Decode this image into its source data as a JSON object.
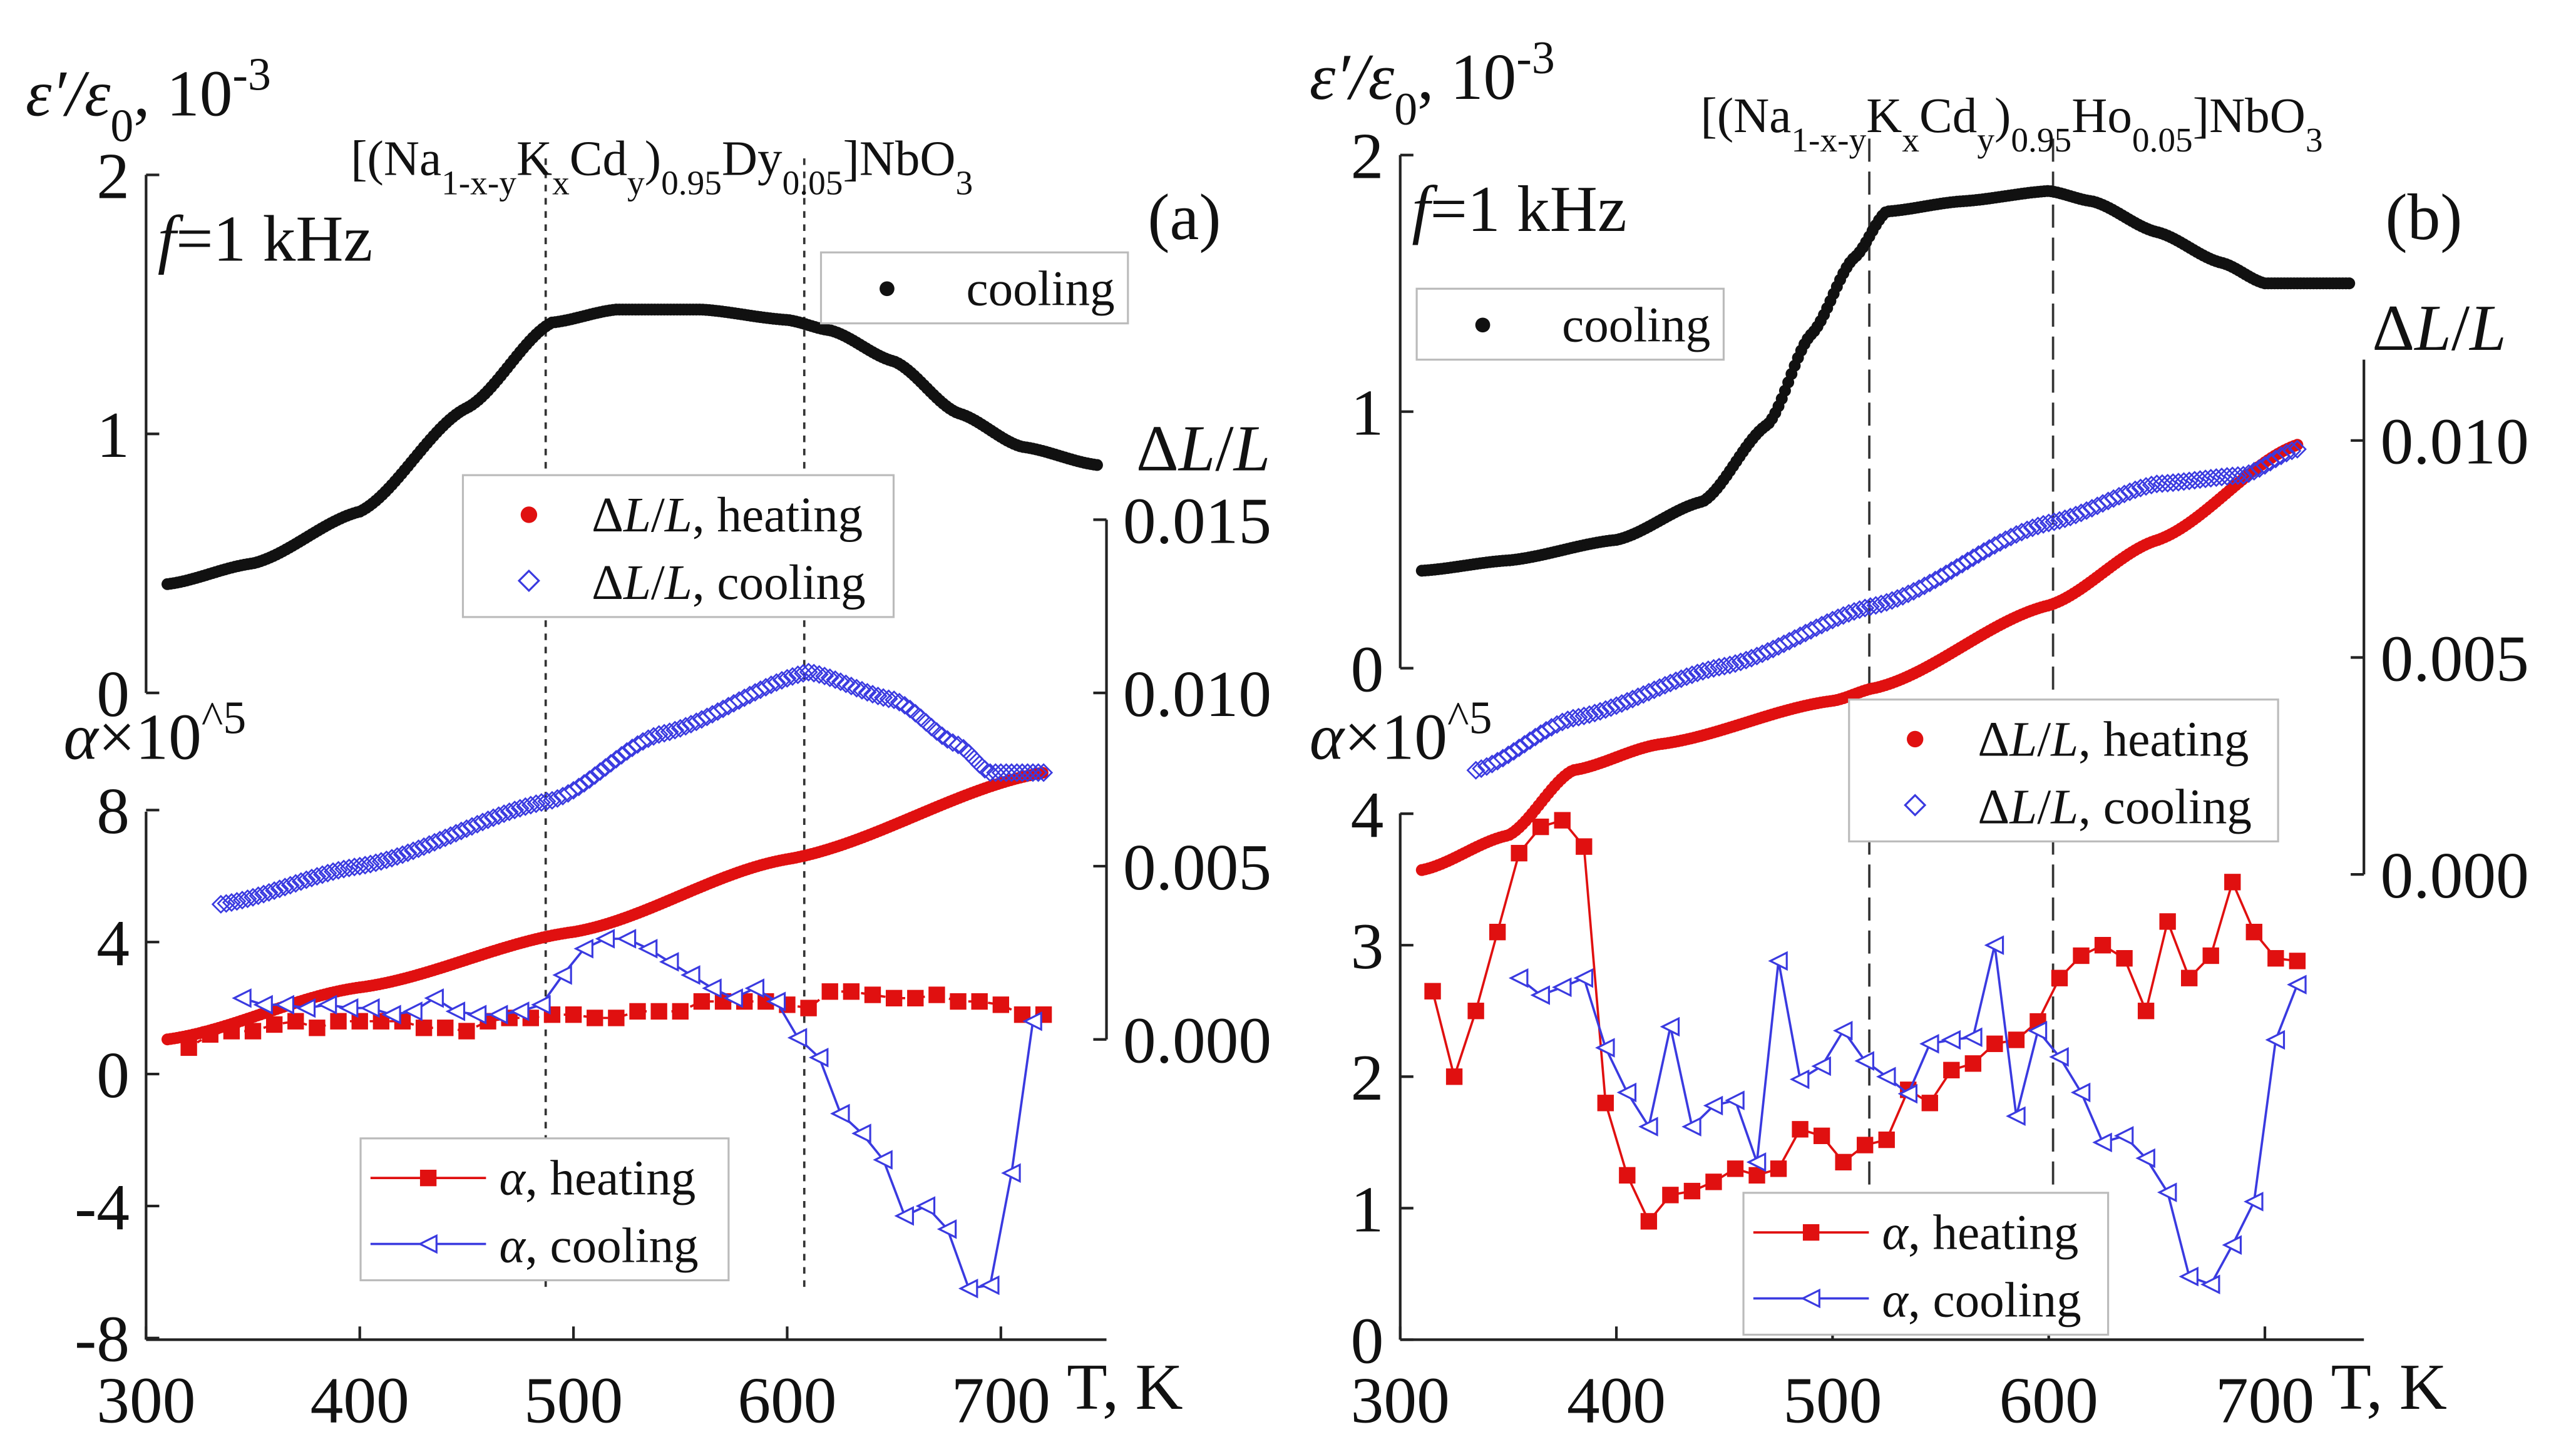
{
  "colors": {
    "eps": "#111111",
    "heating": "#e01010",
    "cooling": "#3a3ae0"
  },
  "chart_data": [
    {
      "type": "scatter",
      "panel_label": "(a)",
      "title_parts": [
        {
          "t": "[(Na"
        },
        {
          "t": "1-x-y",
          "sub": true
        },
        {
          "t": "K"
        },
        {
          "t": "x",
          "sub": true
        },
        {
          "t": "Cd"
        },
        {
          "t": "y",
          "sub": true
        },
        {
          "t": ")"
        },
        {
          "t": "0.95",
          "sub": true
        },
        {
          "t": "Dy"
        },
        {
          "t": "0.05",
          "sub": true
        },
        {
          "t": "]NbO"
        },
        {
          "t": "3",
          "sub": true
        }
      ],
      "frequency_label": "f=1 kHz",
      "xlabel": "T, K",
      "xlim": [
        300,
        750
      ],
      "xticks": [
        "300",
        "400",
        "500",
        "600",
        "700"
      ],
      "eps_label": "ε′/ε0, 10-3",
      "eps_ylim": [
        0,
        2
      ],
      "eps_ticks": [
        "0",
        "1",
        "2"
      ],
      "alpha_label": "α×10^5",
      "alpha_ylim": [
        -8,
        8
      ],
      "alpha_ticks": [
        "-8",
        "-4",
        "0",
        "4",
        "8"
      ],
      "dl_label": "ΔL/L",
      "dl_ylim": [
        0,
        0.015
      ],
      "dl_ticks": [
        "0.000",
        "0.005",
        "0.010",
        "0.015"
      ],
      "vlines": [
        487,
        608
      ],
      "legends": {
        "eps": [
          "cooling"
        ],
        "dl": [
          "ΔL/L, heating",
          "ΔL/L, cooling"
        ],
        "alpha": [
          "α, heating",
          "α, cooling"
        ]
      },
      "series": {
        "eps_cooling": {
          "x": [
            310,
            350,
            400,
            450,
            490,
            520,
            560,
            600,
            620,
            650,
            680,
            710,
            745
          ],
          "y": [
            0.42,
            0.5,
            0.7,
            1.1,
            1.43,
            1.48,
            1.48,
            1.44,
            1.4,
            1.28,
            1.08,
            0.95,
            0.88
          ]
        },
        "dl_heating": {
          "x": [
            310,
            400,
            500,
            600,
            720
          ],
          "y": [
            0.0,
            0.0015,
            0.0031,
            0.0052,
            0.0077
          ]
        },
        "dl_cooling": {
          "x": [
            335,
            400,
            490,
            540,
            610,
            650,
            680,
            695,
            720
          ],
          "y": [
            0.0039,
            0.005,
            0.0069,
            0.0088,
            0.0106,
            0.0098,
            0.0085,
            0.0077,
            0.0077
          ]
        },
        "alpha_heating": {
          "x": [
            320,
            330,
            340,
            350,
            360,
            370,
            380,
            390,
            400,
            410,
            420,
            430,
            440,
            450,
            460,
            470,
            480,
            490,
            500,
            510,
            520,
            530,
            540,
            550,
            560,
            570,
            580,
            590,
            600,
            610,
            620,
            630,
            640,
            650,
            660,
            670,
            680,
            690,
            700,
            710,
            720
          ],
          "y": [
            0.8,
            1.2,
            1.3,
            1.3,
            1.5,
            1.6,
            1.4,
            1.6,
            1.6,
            1.6,
            1.6,
            1.4,
            1.4,
            1.3,
            1.6,
            1.7,
            1.7,
            1.8,
            1.8,
            1.7,
            1.7,
            1.9,
            1.9,
            1.9,
            2.2,
            2.2,
            2.2,
            2.2,
            2.1,
            2.0,
            2.5,
            2.5,
            2.4,
            2.3,
            2.3,
            2.4,
            2.2,
            2.2,
            2.1,
            1.8,
            1.8
          ]
        },
        "alpha_cooling": {
          "x": [
            345,
            355,
            365,
            375,
            385,
            395,
            405,
            415,
            425,
            435,
            445,
            455,
            465,
            475,
            485,
            495,
            505,
            515,
            525,
            535,
            545,
            555,
            565,
            575,
            585,
            595,
            605,
            615,
            625,
            635,
            645,
            655,
            665,
            675,
            685,
            695,
            705,
            715
          ],
          "y": [
            2.3,
            2.1,
            2.1,
            2.0,
            2.1,
            2.0,
            2.0,
            1.8,
            1.9,
            2.3,
            1.9,
            1.8,
            1.8,
            1.9,
            2.1,
            3.0,
            3.8,
            4.1,
            4.1,
            3.8,
            3.4,
            3.0,
            2.6,
            2.3,
            2.6,
            2.2,
            1.1,
            0.5,
            -1.2,
            -1.8,
            -2.6,
            -4.3,
            -4.0,
            -4.7,
            -6.5,
            -6.4,
            -3.0,
            1.6
          ]
        }
      }
    },
    {
      "type": "scatter",
      "panel_label": "(b)",
      "title_parts": [
        {
          "t": "[(Na"
        },
        {
          "t": "1-x-y",
          "sub": true
        },
        {
          "t": "K"
        },
        {
          "t": "x",
          "sub": true
        },
        {
          "t": "Cd"
        },
        {
          "t": "y",
          "sub": true
        },
        {
          "t": ")"
        },
        {
          "t": "0.95",
          "sub": true
        },
        {
          "t": "Ho"
        },
        {
          "t": "0.05",
          "sub": true
        },
        {
          "t": "]NbO"
        },
        {
          "t": "3",
          "sub": true
        }
      ],
      "frequency_label": "f=1 kHz",
      "xlabel": "T, K",
      "xlim": [
        300,
        745
      ],
      "xticks": [
        "300",
        "400",
        "500",
        "600",
        "700"
      ],
      "eps_label": "ε′/ε0, 10-3",
      "eps_ylim": [
        0,
        2
      ],
      "eps_ticks": [
        "0",
        "1",
        "2"
      ],
      "alpha_label": "α×10^5",
      "alpha_ylim": [
        0,
        4
      ],
      "alpha_ticks": [
        "0",
        "1",
        "2",
        "3",
        "4"
      ],
      "dl_label": "ΔL/L",
      "dl_ylim": [
        0,
        0.012
      ],
      "dl_ticks": [
        "0.000",
        "0.005",
        "0.010"
      ],
      "vlines": [
        517,
        602
      ],
      "legends": {
        "eps": [
          "cooling"
        ],
        "dl": [
          "ΔL/L, heating",
          "ΔL/L, cooling"
        ],
        "alpha": [
          "α, heating",
          "α, cooling"
        ]
      },
      "series": {
        "eps_cooling": {
          "x": [
            310,
            350,
            400,
            440,
            470,
            490,
            510,
            525,
            560,
            600,
            620,
            650,
            680,
            700,
            740
          ],
          "y": [
            0.38,
            0.42,
            0.5,
            0.65,
            0.95,
            1.3,
            1.6,
            1.78,
            1.82,
            1.86,
            1.82,
            1.7,
            1.58,
            1.5,
            1.5
          ]
        },
        "dl_heating": {
          "x": [
            310,
            350,
            380,
            420,
            500,
            520,
            600,
            650,
            715
          ],
          "y": [
            0.0001,
            0.0009,
            0.0024,
            0.003,
            0.004,
            0.0043,
            0.0062,
            0.0077,
            0.0099
          ]
        },
        "dl_cooling": {
          "x": [
            335,
            380,
            450,
            520,
            600,
            650,
            690,
            715
          ],
          "y": [
            0.0024,
            0.0036,
            0.0048,
            0.0062,
            0.0081,
            0.009,
            0.0092,
            0.0098
          ]
        },
        "alpha_heating": {
          "x": [
            315,
            325,
            335,
            345,
            355,
            365,
            375,
            385,
            395,
            405,
            415,
            425,
            435,
            445,
            455,
            465,
            475,
            485,
            495,
            505,
            515,
            525,
            535,
            545,
            555,
            565,
            575,
            585,
            595,
            605,
            615,
            625,
            635,
            645,
            655,
            665,
            675,
            685,
            695,
            705,
            715
          ],
          "y": [
            2.65,
            2.0,
            2.5,
            3.1,
            3.7,
            3.9,
            3.95,
            3.75,
            1.8,
            1.25,
            0.9,
            1.1,
            1.13,
            1.2,
            1.3,
            1.25,
            1.3,
            1.6,
            1.55,
            1.35,
            1.48,
            1.52,
            1.9,
            1.8,
            2.05,
            2.1,
            2.25,
            2.28,
            2.42,
            2.75,
            2.92,
            3.0,
            2.9,
            2.5,
            3.18,
            2.75,
            2.92,
            3.48,
            3.1,
            2.9,
            2.88
          ]
        },
        "alpha_cooling": {
          "x": [
            355,
            365,
            375,
            385,
            395,
            405,
            415,
            425,
            435,
            445,
            455,
            465,
            475,
            485,
            495,
            505,
            515,
            525,
            535,
            545,
            555,
            565,
            575,
            585,
            595,
            605,
            615,
            625,
            635,
            645,
            655,
            665,
            675,
            685,
            695,
            705,
            715
          ],
          "y": [
            2.75,
            2.62,
            2.68,
            2.75,
            2.22,
            1.88,
            1.62,
            2.38,
            1.62,
            1.78,
            1.82,
            1.35,
            2.88,
            1.98,
            2.08,
            2.35,
            2.12,
            2.0,
            1.87,
            2.25,
            2.28,
            2.3,
            3.0,
            1.7,
            2.35,
            2.15,
            1.88,
            1.5,
            1.55,
            1.38,
            1.12,
            0.48,
            0.42,
            0.72,
            1.05,
            2.28,
            2.7
          ]
        }
      }
    }
  ]
}
